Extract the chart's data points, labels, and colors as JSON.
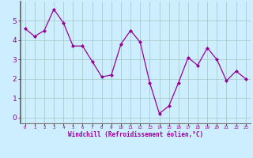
{
  "x": [
    0,
    1,
    2,
    3,
    4,
    5,
    6,
    7,
    8,
    9,
    10,
    11,
    12,
    13,
    14,
    15,
    16,
    17,
    18,
    19,
    20,
    21,
    22,
    23
  ],
  "y": [
    4.6,
    4.2,
    4.5,
    5.6,
    4.9,
    3.7,
    3.7,
    2.9,
    2.1,
    2.2,
    3.8,
    4.5,
    3.9,
    1.8,
    0.2,
    0.6,
    1.8,
    3.1,
    2.7,
    3.6,
    3.0,
    1.9,
    2.4,
    2.0
  ],
  "line_color": "#990099",
  "marker_color": "#990099",
  "plot_bg_color": "#cceeff",
  "fig_bg_color": "#cceeff",
  "grid_color": "#aacccc",
  "xlabel": "Windchill (Refroidissement éolien,°C)",
  "xlabel_color": "#990099",
  "xlabel_bg_color": "#800080",
  "ylim": [
    -0.3,
    6.0
  ],
  "xlim": [
    -0.5,
    23.5
  ],
  "yticks": [
    0,
    1,
    2,
    3,
    4,
    5
  ],
  "xticks": [
    0,
    1,
    2,
    3,
    4,
    5,
    6,
    7,
    8,
    9,
    10,
    11,
    12,
    13,
    14,
    15,
    16,
    17,
    18,
    19,
    20,
    21,
    22,
    23
  ],
  "tick_label_color": "#990099",
  "spine_color": "#808080",
  "left_spine_color": "#606060"
}
